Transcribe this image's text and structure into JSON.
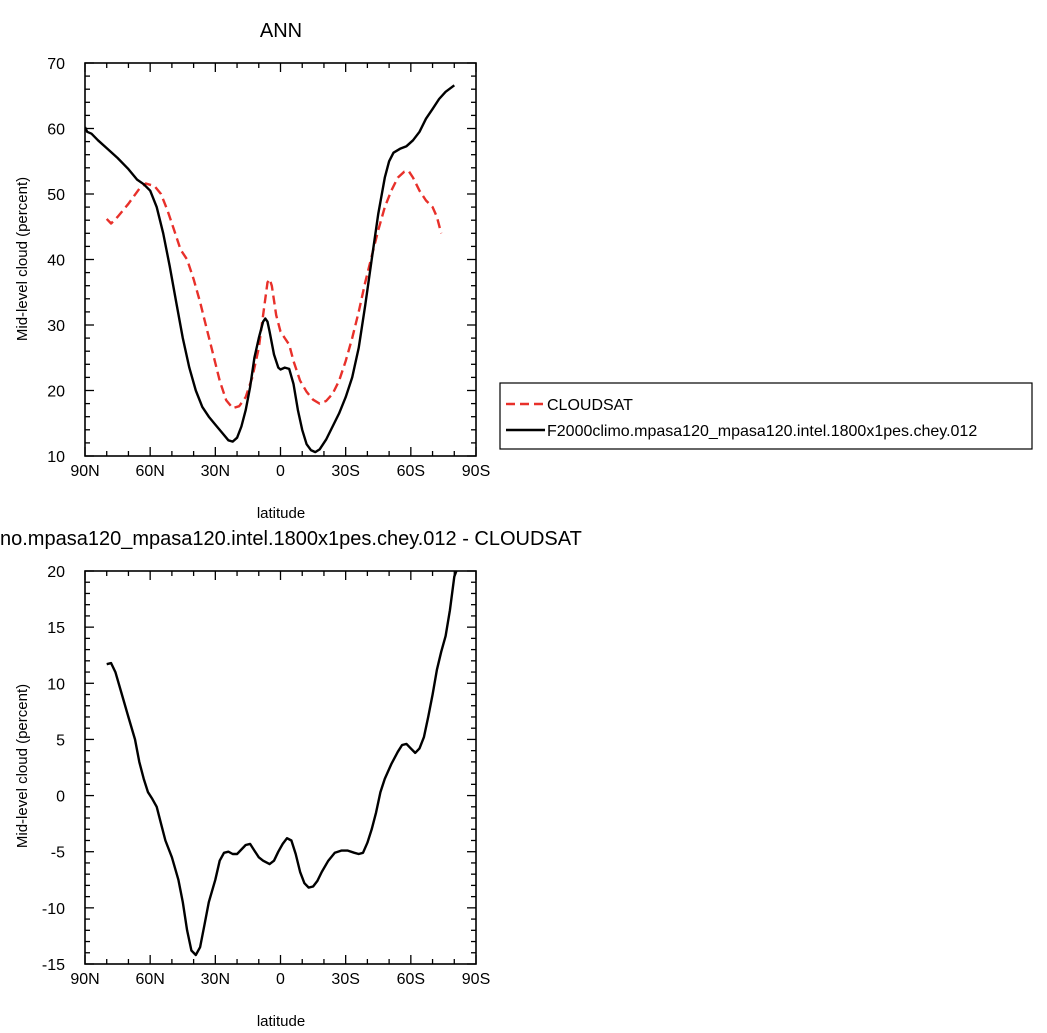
{
  "chart_data": [
    {
      "type": "line",
      "title": "ANN",
      "xlabel": "latitude",
      "ylabel": "Mid-level cloud (percent)",
      "xlim": [
        -90,
        90
      ],
      "ylim": [
        10,
        70
      ],
      "xticks": [
        -90,
        -60,
        -30,
        0,
        30,
        60,
        90
      ],
      "xtick_labels": [
        "90N",
        "60N",
        "30N",
        "0",
        "30S",
        "60S",
        "90S"
      ],
      "yticks": [
        10,
        20,
        30,
        40,
        50,
        60,
        70
      ],
      "ytick_labels": [
        "10",
        "20",
        "30",
        "40",
        "50",
        "60",
        "70"
      ],
      "grid": false,
      "legend": "right",
      "series": [
        {
          "name": "CLOUDSAT",
          "color": "#e8302a",
          "dash": "dashed",
          "points": [
            [
              -80,
              46.2
            ],
            [
              -78,
              45.5
            ],
            [
              -75,
              46.5
            ],
            [
              -70,
              48.5
            ],
            [
              -65,
              50.8
            ],
            [
              -62,
              51.6
            ],
            [
              -58,
              51.2
            ],
            [
              -55,
              50
            ],
            [
              -52,
              47.5
            ],
            [
              -49,
              44.5
            ],
            [
              -46,
              41.5
            ],
            [
              -43,
              40
            ],
            [
              -40,
              37
            ],
            [
              -37,
              33.5
            ],
            [
              -34,
              29.5
            ],
            [
              -31,
              25.5
            ],
            [
              -28,
              21.5
            ],
            [
              -25,
              18.5
            ],
            [
              -22,
              17.3
            ],
            [
              -19,
              17.6
            ],
            [
              -16,
              19
            ],
            [
              -13,
              22
            ],
            [
              -10,
              26.5
            ],
            [
              -8,
              31.5
            ],
            [
              -6,
              36.5
            ],
            [
              -5,
              37
            ],
            [
              -4,
              36
            ],
            [
              -2,
              31.5
            ],
            [
              0,
              29
            ],
            [
              2,
              28
            ],
            [
              4,
              27
            ],
            [
              6,
              24.5
            ],
            [
              9,
              21.5
            ],
            [
              12,
              19.8
            ],
            [
              15,
              18.6
            ],
            [
              18,
              18
            ],
            [
              21,
              18.4
            ],
            [
              24,
              19.5
            ],
            [
              27,
              21.5
            ],
            [
              30,
              24.5
            ],
            [
              33,
              28
            ],
            [
              36,
              32
            ],
            [
              39,
              36.5
            ],
            [
              42,
              40.5
            ],
            [
              45,
              44.5
            ],
            [
              48,
              48
            ],
            [
              51,
              50.5
            ],
            [
              54,
              52.5
            ],
            [
              57,
              53.4
            ],
            [
              59,
              53.5
            ],
            [
              61,
              52.5
            ],
            [
              64,
              50.5
            ],
            [
              67,
              49
            ],
            [
              70,
              48
            ],
            [
              72,
              46.5
            ],
            [
              74,
              44
            ]
          ]
        },
        {
          "name": "F2000climo.mpasa120_mpasa120.intel.1800x1pes.chey.012",
          "color": "#000000",
          "dash": "solid",
          "points": [
            [
              -90,
              60.2
            ],
            [
              -89,
              59.5
            ],
            [
              -87,
              59.2
            ],
            [
              -84,
              58.2
            ],
            [
              -80,
              57
            ],
            [
              -75,
              55.5
            ],
            [
              -70,
              53.8
            ],
            [
              -66,
              52.2
            ],
            [
              -63,
              51.5
            ],
            [
              -60,
              50.5
            ],
            [
              -57,
              48
            ],
            [
              -54,
              44
            ],
            [
              -51,
              39
            ],
            [
              -48,
              33.5
            ],
            [
              -45,
              28
            ],
            [
              -42,
              23.5
            ],
            [
              -39,
              20
            ],
            [
              -36,
              17.5
            ],
            [
              -33,
              16
            ],
            [
              -30,
              14.8
            ],
            [
              -27,
              13.6
            ],
            [
              -24,
              12.4
            ],
            [
              -22,
              12.2
            ],
            [
              -20,
              12.8
            ],
            [
              -18,
              14.5
            ],
            [
              -16,
              17
            ],
            [
              -14,
              20.5
            ],
            [
              -12,
              25
            ],
            [
              -10,
              28
            ],
            [
              -8,
              30.5
            ],
            [
              -7,
              31
            ],
            [
              -6,
              30.5
            ],
            [
              -5,
              29
            ],
            [
              -3,
              25.5
            ],
            [
              -1,
              23.5
            ],
            [
              0,
              23.2
            ],
            [
              2,
              23.5
            ],
            [
              4,
              23.3
            ],
            [
              6,
              21
            ],
            [
              8,
              17
            ],
            [
              10,
              14
            ],
            [
              12,
              11.8
            ],
            [
              14,
              10.9
            ],
            [
              16,
              10.6
            ],
            [
              18,
              11
            ],
            [
              21,
              12.5
            ],
            [
              24,
              14.5
            ],
            [
              27,
              16.5
            ],
            [
              30,
              19
            ],
            [
              33,
              22
            ],
            [
              36,
              26.5
            ],
            [
              39,
              33
            ],
            [
              42,
              40
            ],
            [
              45,
              47
            ],
            [
              48,
              52.5
            ],
            [
              50,
              55
            ],
            [
              52,
              56.3
            ],
            [
              55,
              56.9
            ],
            [
              58,
              57.3
            ],
            [
              61,
              58.2
            ],
            [
              64,
              59.5
            ],
            [
              67,
              61.5
            ],
            [
              70,
              63
            ],
            [
              73,
              64.5
            ],
            [
              76,
              65.6
            ],
            [
              80,
              66.6
            ]
          ]
        }
      ]
    },
    {
      "type": "line",
      "title": "no.mpasa120_mpasa120.intel.1800x1pes.chey.012 - CLOUDSAT",
      "xlabel": "latitude",
      "ylabel": "Mid-level cloud (percent)",
      "xlim": [
        -90,
        90
      ],
      "ylim": [
        -15,
        20
      ],
      "xticks": [
        -90,
        -60,
        -30,
        0,
        30,
        60,
        90
      ],
      "xtick_labels": [
        "90N",
        "60N",
        "30N",
        "0",
        "30S",
        "60S",
        "90S"
      ],
      "yticks": [
        -15,
        -10,
        -5,
        0,
        5,
        10,
        15,
        20
      ],
      "ytick_labels": [
        "-15",
        "-10",
        "-5",
        "0",
        "5",
        "10",
        "15",
        "20"
      ],
      "grid": false,
      "series": [
        {
          "color": "#000000",
          "dash": "solid",
          "points": [
            [
              -80,
              11.7
            ],
            [
              -78,
              11.8
            ],
            [
              -76,
              11
            ],
            [
              -73,
              9
            ],
            [
              -70,
              7
            ],
            [
              -67,
              5
            ],
            [
              -65,
              3
            ],
            [
              -63,
              1.5
            ],
            [
              -61,
              0.3
            ],
            [
              -59,
              -0.3
            ],
            [
              -57,
              -1
            ],
            [
              -55,
              -2.5
            ],
            [
              -53,
              -4
            ],
            [
              -50,
              -5.5
            ],
            [
              -47,
              -7.5
            ],
            [
              -45,
              -9.5
            ],
            [
              -43,
              -12
            ],
            [
              -41,
              -13.8
            ],
            [
              -39,
              -14.2
            ],
            [
              -37,
              -13.5
            ],
            [
              -35,
              -11.5
            ],
            [
              -33,
              -9.5
            ],
            [
              -30,
              -7.5
            ],
            [
              -28,
              -5.8
            ],
            [
              -26,
              -5.1
            ],
            [
              -24,
              -5
            ],
            [
              -22,
              -5.2
            ],
            [
              -20,
              -5.2
            ],
            [
              -18,
              -4.8
            ],
            [
              -16,
              -4.4
            ],
            [
              -14,
              -4.3
            ],
            [
              -12,
              -4.9
            ],
            [
              -10,
              -5.5
            ],
            [
              -8,
              -5.8
            ],
            [
              -5,
              -6.1
            ],
            [
              -3,
              -5.8
            ],
            [
              -1,
              -5
            ],
            [
              1,
              -4.3
            ],
            [
              3,
              -3.8
            ],
            [
              5,
              -4
            ],
            [
              7,
              -5.2
            ],
            [
              9,
              -6.8
            ],
            [
              11,
              -7.8
            ],
            [
              13,
              -8.2
            ],
            [
              15,
              -8.1
            ],
            [
              17,
              -7.6
            ],
            [
              19,
              -6.8
            ],
            [
              22,
              -5.8
            ],
            [
              25,
              -5.1
            ],
            [
              28,
              -4.9
            ],
            [
              31,
              -4.9
            ],
            [
              34,
              -5.1
            ],
            [
              36,
              -5.2
            ],
            [
              38,
              -5.1
            ],
            [
              40,
              -4.2
            ],
            [
              42,
              -3
            ],
            [
              44,
              -1.5
            ],
            [
              46,
              0.3
            ],
            [
              48,
              1.5
            ],
            [
              51,
              2.8
            ],
            [
              54,
              3.9
            ],
            [
              56,
              4.5
            ],
            [
              58,
              4.6
            ],
            [
              60,
              4.2
            ],
            [
              62,
              3.8
            ],
            [
              64,
              4.2
            ],
            [
              66,
              5.2
            ],
            [
              68,
              7
            ],
            [
              70,
              9
            ],
            [
              72,
              11.2
            ],
            [
              74,
              12.8
            ],
            [
              76,
              14.2
            ],
            [
              78,
              16.5
            ],
            [
              80,
              19.5
            ],
            [
              81,
              20
            ]
          ]
        }
      ]
    }
  ]
}
